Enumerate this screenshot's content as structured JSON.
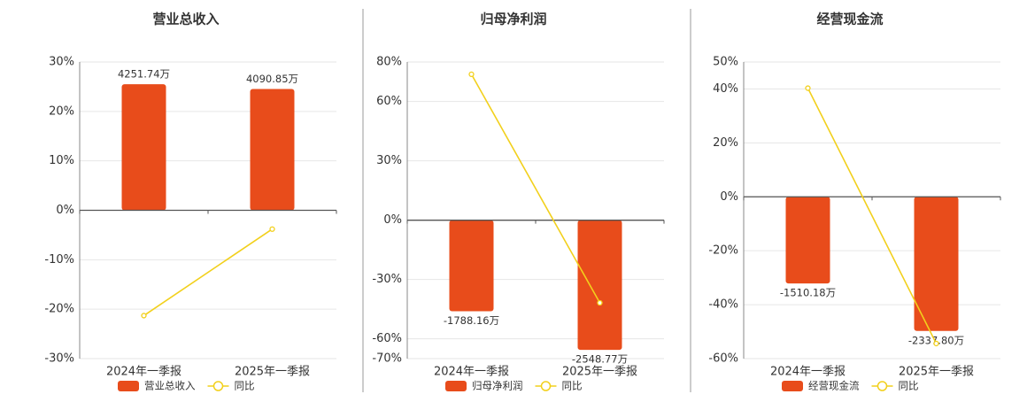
{
  "chart_data": [
    {
      "type": "bar",
      "title": "营业总收入",
      "categories": [
        "2024年一季报",
        "2025年一季报"
      ],
      "series": [
        {
          "name": "营业总收入",
          "type": "bar",
          "axis": "y2",
          "color": "#e84c1b",
          "values": [
            4251.74,
            4090.85
          ],
          "value_labels": [
            "4251.74万",
            "4090.85万"
          ]
        },
        {
          "name": "同比",
          "type": "line",
          "color": "#f2d01c",
          "values": [
            -21.3,
            -3.8
          ]
        }
      ],
      "ylim": [
        -30,
        30
      ],
      "yticks": [
        {
          "value": 30,
          "label": "30%"
        },
        {
          "value": 20,
          "label": "20%"
        },
        {
          "value": 10,
          "label": "10%"
        },
        {
          "value": 0,
          "label": "0%"
        },
        {
          "value": -10,
          "label": "-10%"
        },
        {
          "value": -20,
          "label": "-20%"
        },
        {
          "value": -30,
          "label": "-30%"
        }
      ],
      "y2lim": [
        -5000,
        5000
      ],
      "grid": true
    },
    {
      "type": "bar",
      "title": "归母净利润",
      "categories": [
        "2024年一季报",
        "2025年一季报"
      ],
      "series": [
        {
          "name": "归母净利润",
          "type": "bar",
          "axis": "y2",
          "color": "#e84c1b",
          "values": [
            -1788.16,
            -2548.77
          ],
          "value_labels": [
            "-1788.16万",
            "-2548.77万"
          ]
        },
        {
          "name": "同比",
          "type": "line",
          "color": "#f2d01c",
          "values": [
            73.8,
            -41.8
          ]
        }
      ],
      "ylim": [
        -70,
        80
      ],
      "yticks": [
        {
          "value": 80,
          "label": "80%"
        },
        {
          "value": 60,
          "label": "60%"
        },
        {
          "value": 30,
          "label": "30%"
        },
        {
          "value": 0,
          "label": "0%"
        },
        {
          "value": -30,
          "label": "-30%"
        },
        {
          "value": -60,
          "label": "-60%"
        },
        {
          "value": -70,
          "label": "-70%"
        }
      ],
      "y2lim": [
        -2720,
        3110
      ],
      "grid": true
    },
    {
      "type": "bar",
      "title": "经营现金流",
      "categories": [
        "2024年一季报",
        "2025年一季报"
      ],
      "series": [
        {
          "name": "经营现金流",
          "type": "bar",
          "axis": "y2",
          "color": "#e84c1b",
          "values": [
            -1510.18,
            -2337.8
          ],
          "value_labels": [
            "-1510.18万",
            "-2337.80万"
          ]
        },
        {
          "name": "同比",
          "type": "line",
          "color": "#f2d01c",
          "values": [
            40.3,
            -54.4
          ]
        }
      ],
      "ylim": [
        -60,
        50
      ],
      "yticks": [
        {
          "value": 50,
          "label": "50%"
        },
        {
          "value": 40,
          "label": "40%"
        },
        {
          "value": 20,
          "label": "20%"
        },
        {
          "value": 0,
          "label": "0%"
        },
        {
          "value": -20,
          "label": "-20%"
        },
        {
          "value": -40,
          "label": "-40%"
        },
        {
          "value": -60,
          "label": "-60%"
        }
      ],
      "y2lim": [
        -2820,
        2350
      ],
      "grid": true
    }
  ]
}
